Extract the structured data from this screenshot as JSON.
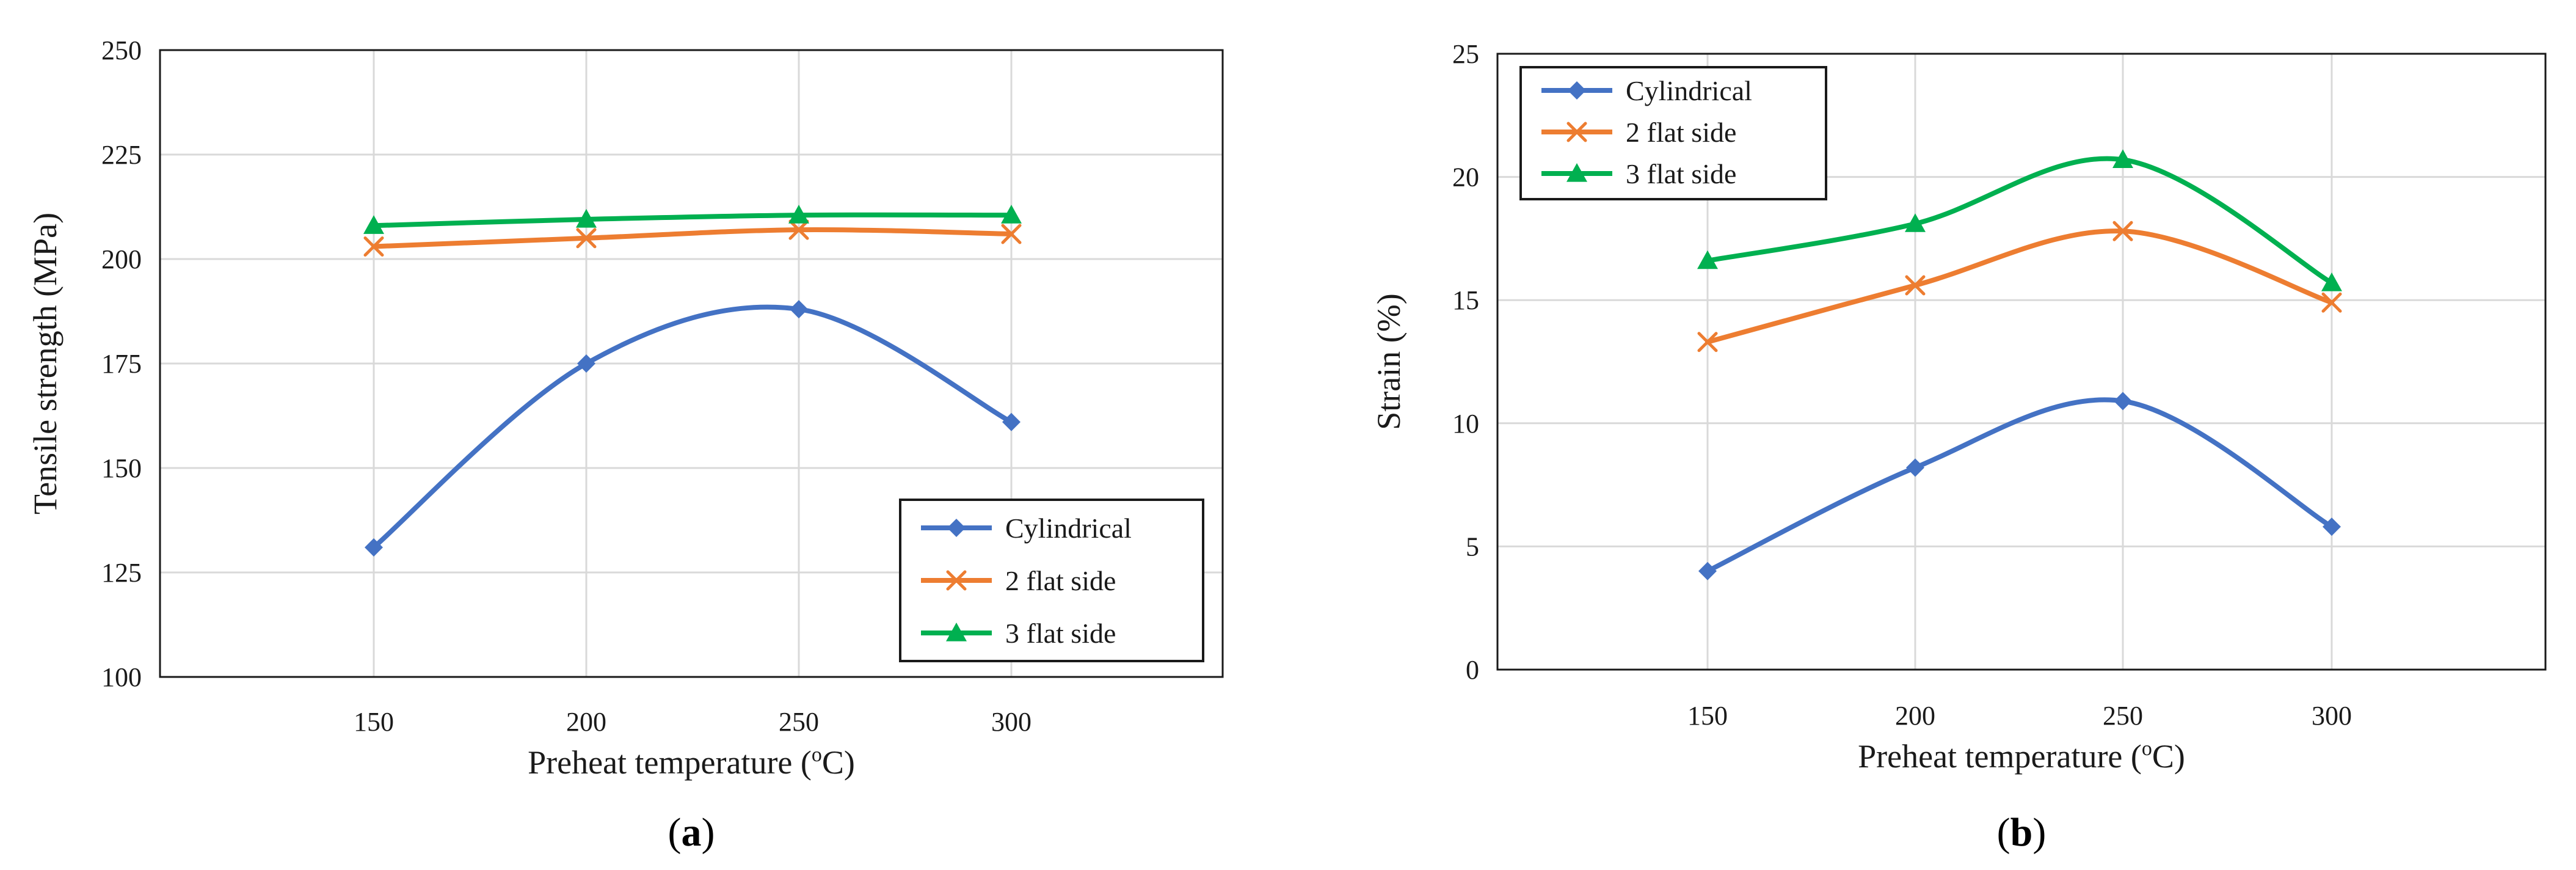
{
  "chart_data": [
    {
      "type": "line",
      "panel_label": "a",
      "x": [
        150,
        200,
        250,
        300
      ],
      "xlabel_main": "Preheat temperature (",
      "xlabel_sup": "o",
      "xlabel_end": "C)",
      "ylabel": "Tensile strength (MPa)",
      "ylim": [
        100,
        250
      ],
      "yticks": [
        100,
        125,
        150,
        175,
        200,
        225,
        250
      ],
      "grid": true,
      "legend_position": "bottom-right",
      "series": [
        {
          "name": "Cylindrical",
          "values": [
            131,
            175,
            188,
            161
          ],
          "color": "#4472C4",
          "marker": "diamond"
        },
        {
          "name": "2 flat side",
          "values": [
            203,
            205,
            207,
            206
          ],
          "color": "#ED7D31",
          "marker": "x"
        },
        {
          "name": "3 flat side",
          "values": [
            208,
            209.5,
            210.5,
            210.5
          ],
          "color": "#00B050",
          "marker": "triangle"
        }
      ]
    },
    {
      "type": "line",
      "panel_label": "b",
      "x": [
        150,
        200,
        250,
        300
      ],
      "xlabel_main": "Preheat temperature (",
      "xlabel_sup": "o",
      "xlabel_end": "C)",
      "ylabel": "Strain (%)",
      "ylim": [
        0,
        25
      ],
      "yticks": [
        0,
        5,
        10,
        15,
        20,
        25
      ],
      "grid": true,
      "legend_position": "top-left",
      "series": [
        {
          "name": "Cylindrical",
          "values": [
            4.0,
            8.2,
            10.9,
            5.8
          ],
          "color": "#4472C4",
          "marker": "diamond"
        },
        {
          "name": "2 flat side",
          "values": [
            13.3,
            15.6,
            17.8,
            14.9
          ],
          "color": "#ED7D31",
          "marker": "x"
        },
        {
          "name": "3 flat side",
          "values": [
            16.6,
            18.1,
            20.7,
            15.7
          ],
          "color": "#00B050",
          "marker": "triangle"
        }
      ]
    }
  ]
}
